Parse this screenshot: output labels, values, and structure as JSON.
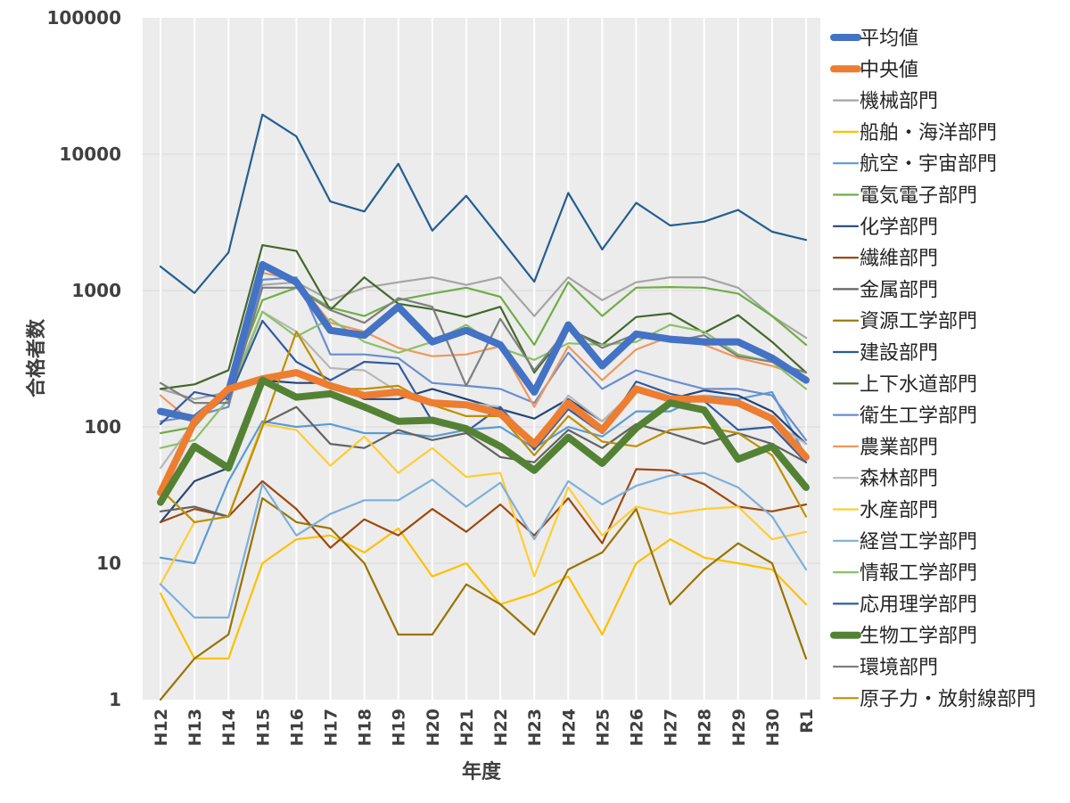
{
  "chart_data": {
    "type": "line",
    "title": "",
    "xlabel": "年度",
    "ylabel": "合格者数",
    "yscale": "log",
    "ylim": [
      1,
      100000
    ],
    "y_ticks": [
      "1",
      "10",
      "100",
      "1000",
      "10000",
      "100000"
    ],
    "categories": [
      "H12",
      "H13",
      "H14",
      "H15",
      "H16",
      "H17",
      "H18",
      "H19",
      "H20",
      "H21",
      "H22",
      "H23",
      "H24",
      "H25",
      "H26",
      "H27",
      "H28",
      "H29",
      "H30",
      "R1"
    ],
    "series": [
      {
        "name": "平均値",
        "color": "#4472C4",
        "width": 8,
        "values": [
          130,
          115,
          180,
          1550,
          1150,
          510,
          470,
          760,
          420,
          510,
          400,
          180,
          560,
          280,
          480,
          440,
          420,
          420,
          320,
          220
        ]
      },
      {
        "name": "中央値",
        "color": "#ED7D31",
        "width": 8,
        "values": [
          33,
          110,
          190,
          225,
          250,
          200,
          170,
          180,
          150,
          145,
          125,
          75,
          150,
          95,
          190,
          160,
          160,
          150,
          115,
          60
        ]
      },
      {
        "name": "機械部門",
        "color": "#A5A5A5",
        "width": 2.2,
        "values": [
          190,
          160,
          180,
          1100,
          1150,
          850,
          1050,
          1150,
          1250,
          1100,
          1250,
          650,
          1250,
          850,
          1150,
          1250,
          1250,
          1050,
          650,
          450
        ]
      },
      {
        "name": "船舶・海洋部門",
        "color": "#FFC000",
        "width": 2.2,
        "values": [
          6,
          2,
          2,
          10,
          15,
          16,
          12,
          18,
          8,
          10,
          5,
          6,
          8,
          3,
          10,
          15,
          11,
          10,
          9,
          5
        ]
      },
      {
        "name": "航空・宇宙部門",
        "color": "#5B9BD5",
        "width": 2.2,
        "values": [
          11,
          10,
          40,
          110,
          100,
          105,
          90,
          90,
          85,
          95,
          100,
          70,
          100,
          85,
          130,
          130,
          170,
          160,
          180,
          60
        ]
      },
      {
        "name": "電気電子部門",
        "color": "#70AD47",
        "width": 2.2,
        "values": [
          90,
          100,
          190,
          850,
          1050,
          750,
          650,
          850,
          950,
          1050,
          900,
          400,
          1150,
          650,
          1050,
          1060,
          1050,
          950,
          650,
          400
        ]
      },
      {
        "name": "化学部門",
        "color": "#264478",
        "width": 2.2,
        "values": [
          20,
          40,
          50,
          220,
          210,
          210,
          160,
          160,
          190,
          160,
          135,
          115,
          160,
          110,
          185,
          160,
          185,
          170,
          130,
          75
        ]
      },
      {
        "name": "繊維部門",
        "color": "#9E480E",
        "width": 2.2,
        "values": [
          20,
          25,
          22,
          40,
          25,
          13,
          21,
          16,
          25,
          17,
          27,
          16,
          30,
          14,
          49,
          48,
          38,
          26,
          24,
          27
        ]
      },
      {
        "name": "金属部門",
        "color": "#636363",
        "width": 2.2,
        "values": [
          24,
          26,
          22,
          105,
          140,
          75,
          70,
          95,
          80,
          90,
          60,
          55,
          95,
          70,
          105,
          90,
          75,
          90,
          75,
          55
        ]
      },
      {
        "name": "資源工学部門",
        "color": "#997300",
        "width": 2.2,
        "values": [
          1,
          2,
          3,
          30,
          20,
          18,
          10,
          3,
          3,
          7,
          5,
          3,
          9,
          12,
          25,
          5,
          9,
          14,
          10,
          2
        ]
      },
      {
        "name": "建設部門",
        "color": "#255E91",
        "width": 2.2,
        "values": [
          1500,
          960,
          1900,
          19500,
          13500,
          4500,
          3800,
          8500,
          2750,
          4950,
          2400,
          1160,
          5200,
          2000,
          4400,
          3000,
          3200,
          3900,
          2700,
          2350
        ]
      },
      {
        "name": "上下水道部門",
        "color": "#43682B",
        "width": 2.2,
        "values": [
          190,
          205,
          260,
          2150,
          1950,
          720,
          1250,
          800,
          730,
          640,
          760,
          250,
          520,
          400,
          640,
          680,
          490,
          660,
          420,
          250
        ]
      },
      {
        "name": "衛生工学部門",
        "color": "#698ED0",
        "width": 2.2,
        "values": [
          110,
          120,
          140,
          1200,
          1250,
          340,
          340,
          320,
          210,
          200,
          190,
          150,
          350,
          190,
          260,
          220,
          190,
          190,
          170,
          80
        ]
      },
      {
        "name": "農業部門",
        "color": "#F1975A",
        "width": 2.2,
        "values": [
          170,
          105,
          190,
          1350,
          1200,
          580,
          500,
          380,
          330,
          340,
          390,
          140,
          390,
          220,
          370,
          460,
          400,
          320,
          280,
          230
        ]
      },
      {
        "name": "森林部門",
        "color": "#B7B7B7",
        "width": 2.2,
        "values": [
          50,
          110,
          180,
          700,
          500,
          270,
          260,
          180,
          150,
          150,
          140,
          75,
          170,
          110,
          190,
          160,
          170,
          150,
          110,
          75
        ]
      },
      {
        "name": "水産部門",
        "color": "#FFCD33",
        "width": 2.2,
        "values": [
          7,
          20,
          22,
          105,
          95,
          52,
          85,
          46,
          70,
          43,
          46,
          8,
          36,
          16,
          26,
          23,
          25,
          26,
          15,
          17
        ]
      },
      {
        "name": "経営工学部門",
        "color": "#7CAFDD",
        "width": 2.2,
        "values": [
          7,
          4,
          4,
          38,
          16,
          23,
          29,
          29,
          41,
          26,
          39,
          15,
          40,
          27,
          37,
          44,
          46,
          36,
          22,
          9
        ]
      },
      {
        "name": "情報工学部門",
        "color": "#8CC168",
        "width": 2.2,
        "values": [
          70,
          80,
          160,
          700,
          460,
          620,
          420,
          350,
          420,
          560,
          380,
          310,
          410,
          400,
          420,
          560,
          500,
          340,
          300,
          190
        ]
      },
      {
        "name": "応用理学部門",
        "color": "#335AA1",
        "width": 2.2,
        "values": [
          105,
          180,
          160,
          600,
          300,
          220,
          300,
          290,
          110,
          92,
          140,
          68,
          135,
          90,
          215,
          175,
          155,
          95,
          100,
          55
        ]
      },
      {
        "name": "生物工学部門",
        "color": "#548235",
        "width": 8,
        "values": [
          28,
          72,
          50,
          220,
          165,
          175,
          140,
          110,
          112,
          97,
          72,
          48,
          84,
          54,
          98,
          150,
          133,
          58,
          72,
          36
        ]
      },
      {
        "name": "環境部門",
        "color": "#7F7F7F",
        "width": 2.2,
        "values": [
          210,
          150,
          150,
          1050,
          1050,
          720,
          580,
          880,
          760,
          200,
          620,
          260,
          530,
          380,
          480,
          420,
          470,
          330,
          300,
          250
        ]
      },
      {
        "name": "原子力・放射線部門",
        "color": "#BF9000",
        "width": 2.2,
        "values": [
          35,
          20,
          22,
          100,
          500,
          190,
          190,
          200,
          145,
          120,
          120,
          62,
          120,
          78,
          72,
          95,
          100,
          90,
          62,
          22
        ]
      }
    ]
  }
}
